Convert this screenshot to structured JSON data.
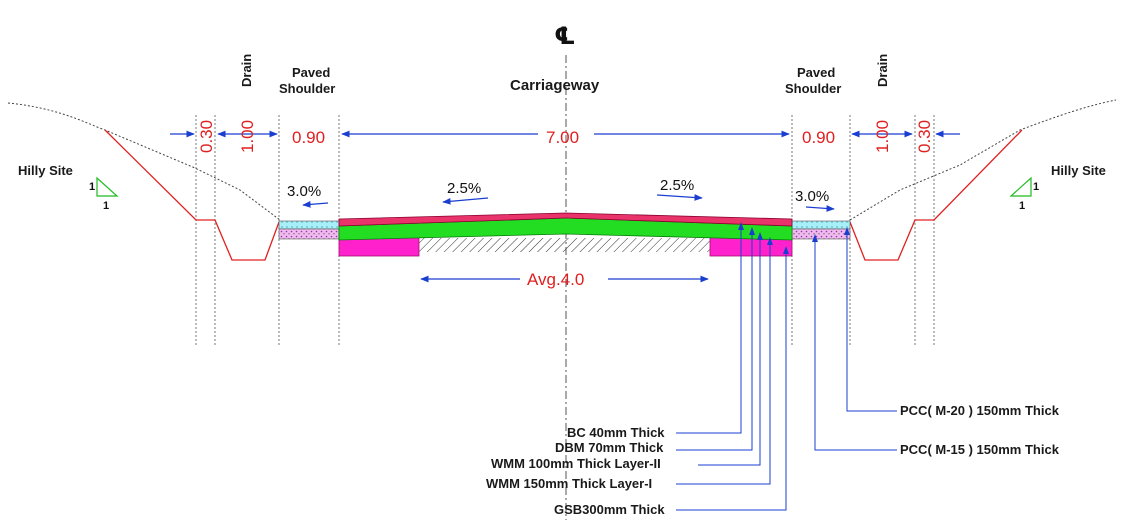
{
  "labels": {
    "centerline_symbol": "℄",
    "drain_left": "Drain",
    "drain_right": "Drain",
    "paved_shoulder_left": [
      "Paved",
      "Shoulder"
    ],
    "paved_shoulder_right": [
      "Paved",
      "Shoulder"
    ],
    "carriageway": "Carriageway",
    "hilly_left": "Hilly Site",
    "hilly_right": "Hilly Site",
    "slope_ratio_v": "1",
    "slope_ratio_h": "1"
  },
  "dimensions": {
    "left_030": "0.30",
    "left_100": "1.00",
    "left_shoulder": "0.90",
    "carriageway": "7.00",
    "right_shoulder": "0.90",
    "right_100": "1.00",
    "right_030": "0.30",
    "avg": "Avg.4.0"
  },
  "slopes": {
    "left_shoulder": "3.0%",
    "left_carriageway": "2.5%",
    "right_carriageway": "2.5%",
    "right_shoulder": "3.0%"
  },
  "layers": {
    "bc": "BC 40mm Thick",
    "dbm": "DBM 70mm Thick",
    "wmm2": "WMM 100mm Thick Layer-II",
    "wmm1": "WMM 150mm Thick Layer-I",
    "gsb": "GSB300mm Thick",
    "pcc20": "PCC( M-20 ) 150mm Thick",
    "pcc15": "PCC( M-15 ) 150mm Thick"
  },
  "colors": {
    "dimension_text": "#e02020",
    "dimension_line": "#1a3fd0",
    "bituminous_top": "#e8336b",
    "wmm": "#22dd22",
    "gsb_edge": "#ff22cc",
    "shoulder_fill": "#a8f0f8",
    "shoulder_base": "#f2b8f0",
    "slope_triangle": "#22bb22",
    "cut_slope": "#e02020"
  }
}
